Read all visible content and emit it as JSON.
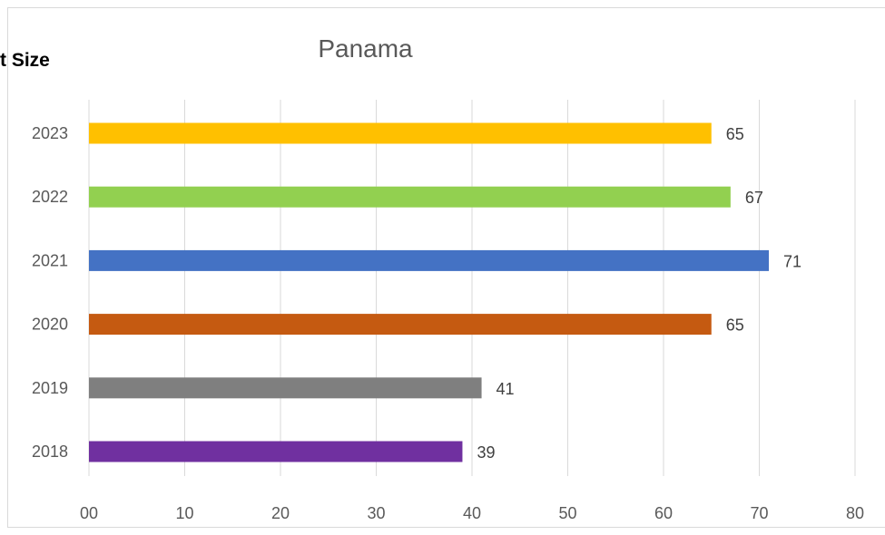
{
  "header": {
    "cut_label": "t Size"
  },
  "chart_data": {
    "type": "bar",
    "orientation": "horizontal",
    "title": "Panama",
    "xlabel": "",
    "ylabel": "",
    "categories": [
      "2023",
      "2022",
      "2021",
      "2020",
      "2019",
      "2018"
    ],
    "values": [
      65,
      67,
      71,
      65,
      41,
      39
    ],
    "colors": [
      "#FFC000",
      "#92D050",
      "#4472C4",
      "#C55A11",
      "#7F7F7F",
      "#7030A0"
    ],
    "xlim": [
      0,
      80
    ],
    "x_ticks": [
      0,
      10,
      20,
      30,
      40,
      50,
      60,
      70,
      80
    ],
    "x_tick_labels": [
      "00",
      "10",
      "20",
      "30",
      "40",
      "50",
      "60",
      "70",
      "80"
    ],
    "grid": true,
    "data_labels": true
  }
}
